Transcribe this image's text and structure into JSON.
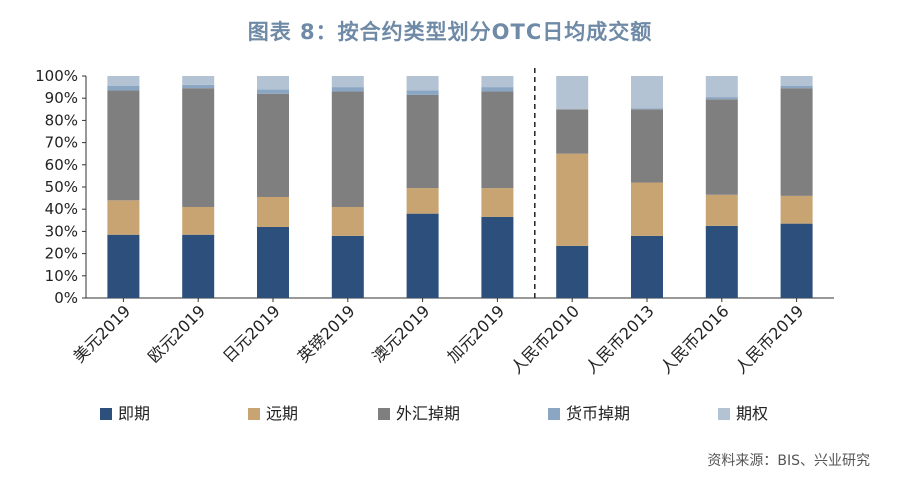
{
  "chart_data": {
    "type": "bar",
    "stacked": true,
    "normalized": true,
    "title": "图表 8：按合约类型划分OTC日均成交额",
    "categories": [
      "美元2019",
      "欧元2019",
      "日元2019",
      "英镑2019",
      "澳元2019",
      "加元2019",
      "人民币2010",
      "人民币2013",
      "人民币2016",
      "人民币2019"
    ],
    "series": [
      {
        "name": "即期",
        "color": "#2c4f7c",
        "values": [
          28.5,
          28.5,
          32,
          28,
          38,
          36.5,
          23.5,
          28,
          32.5,
          33.5
        ]
      },
      {
        "name": "远期",
        "color": "#c8a472",
        "values": [
          15.5,
          12.5,
          13.5,
          13,
          11.5,
          13,
          41.5,
          24,
          14,
          12.5
        ]
      },
      {
        "name": "外汇掉期",
        "color": "#7f7f7f",
        "values": [
          49.5,
          53.5,
          46.5,
          52,
          42,
          43.5,
          20,
          33,
          43,
          48.5
        ]
      },
      {
        "name": "货币掉期",
        "color": "#8aa6c3",
        "values": [
          2,
          1.5,
          2,
          2,
          2,
          2,
          0,
          0.5,
          1,
          1
        ]
      },
      {
        "name": "期权",
        "color": "#b3c3d3",
        "values": [
          4.5,
          4,
          6,
          5,
          6.5,
          5,
          15,
          14.5,
          9.5,
          4.5
        ]
      }
    ],
    "ylim": [
      0,
      100
    ],
    "yticks": [
      "0%",
      "10%",
      "20%",
      "30%",
      "40%",
      "50%",
      "60%",
      "70%",
      "80%",
      "90%",
      "100%"
    ],
    "divider_after_category": "加元2019",
    "legend_position": "bottom",
    "source": "资料来源：BIS、兴业研究"
  }
}
